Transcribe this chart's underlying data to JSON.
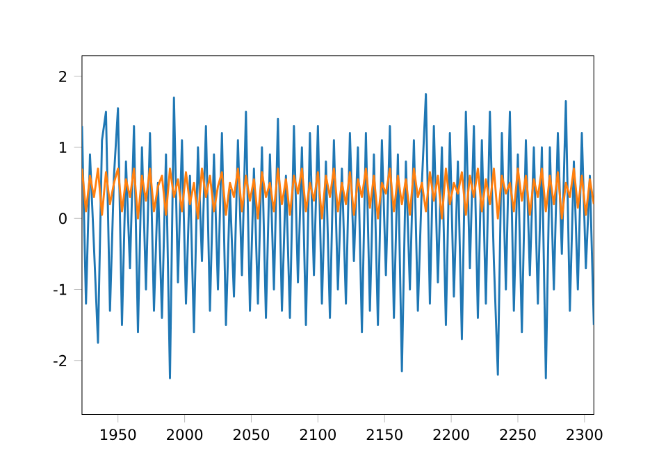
{
  "chart_data": {
    "type": "line",
    "x": [
      1923,
      1926,
      1929,
      1932,
      1935,
      1938,
      1941,
      1944,
      1947,
      1950,
      1953,
      1956,
      1959,
      1962,
      1965,
      1968,
      1971,
      1974,
      1977,
      1980,
      1983,
      1986,
      1989,
      1992,
      1995,
      1998,
      2001,
      2004,
      2007,
      2010,
      2013,
      2016,
      2019,
      2022,
      2025,
      2028,
      2031,
      2034,
      2037,
      2040,
      2043,
      2046,
      2049,
      2052,
      2055,
      2058,
      2061,
      2064,
      2067,
      2070,
      2073,
      2076,
      2079,
      2082,
      2085,
      2088,
      2091,
      2094,
      2097,
      2100,
      2103,
      2106,
      2109,
      2112,
      2115,
      2118,
      2121,
      2124,
      2127,
      2130,
      2133,
      2136,
      2139,
      2142,
      2145,
      2148,
      2151,
      2154,
      2157,
      2160,
      2163,
      2166,
      2169,
      2172,
      2175,
      2178,
      2181,
      2184,
      2187,
      2190,
      2193,
      2196,
      2199,
      2202,
      2205,
      2208,
      2211,
      2214,
      2217,
      2220,
      2223,
      2226,
      2229,
      2232,
      2235,
      2238,
      2241,
      2244,
      2247,
      2250,
      2253,
      2256,
      2259,
      2262,
      2265,
      2268,
      2271,
      2274,
      2277,
      2280,
      2283,
      2286,
      2289,
      2292,
      2295,
      2298,
      2301,
      2304,
      2307
    ],
    "series": [
      {
        "color": "#1f77b4",
        "values": [
          1.3,
          -1.2,
          0.9,
          -0.4,
          -1.75,
          1.1,
          1.5,
          -1.3,
          0.6,
          1.55,
          -1.5,
          0.8,
          -0.7,
          1.3,
          -1.6,
          1.0,
          -1.0,
          1.2,
          -1.3,
          0.5,
          -1.4,
          0.9,
          -2.25,
          1.7,
          -0.9,
          1.1,
          -1.2,
          0.6,
          -1.6,
          1.0,
          -0.6,
          1.3,
          -1.3,
          0.9,
          -1.0,
          1.2,
          -1.5,
          0.4,
          -1.1,
          1.1,
          -0.8,
          1.5,
          -1.3,
          0.7,
          -1.2,
          1.0,
          -1.4,
          0.9,
          -1.0,
          1.4,
          -1.3,
          0.6,
          -1.4,
          1.3,
          -0.9,
          1.0,
          -1.5,
          1.2,
          -0.8,
          1.3,
          -1.2,
          0.8,
          -1.4,
          1.1,
          -1.0,
          0.7,
          -1.2,
          1.2,
          -0.6,
          1.0,
          -1.6,
          1.2,
          -1.3,
          0.9,
          -1.5,
          1.1,
          -0.8,
          1.3,
          -1.4,
          0.9,
          -2.15,
          0.8,
          -1.0,
          1.1,
          -1.3,
          0.5,
          1.75,
          -1.2,
          1.3,
          -0.9,
          1.0,
          -1.5,
          1.2,
          -1.1,
          0.8,
          -1.7,
          1.5,
          -0.7,
          1.3,
          -1.4,
          1.1,
          -1.2,
          1.5,
          -0.6,
          -2.2,
          1.2,
          -1.0,
          1.5,
          -1.3,
          0.9,
          -1.6,
          1.1,
          -0.8,
          1.0,
          -1.2,
          1.0,
          -2.25,
          1.0,
          -1.0,
          1.2,
          -0.5,
          1.65,
          -1.3,
          0.8,
          -1.0,
          1.2,
          -0.7,
          0.6,
          -1.5
        ]
      },
      {
        "color": "#ff7f0e",
        "values": [
          0.7,
          0.1,
          0.6,
          0.3,
          0.7,
          0.05,
          0.65,
          0.2,
          0.5,
          0.7,
          0.1,
          0.55,
          0.3,
          0.7,
          0.0,
          0.6,
          0.25,
          0.7,
          0.1,
          0.45,
          0.6,
          0.05,
          0.7,
          0.3,
          0.55,
          0.1,
          0.65,
          0.2,
          0.5,
          0.0,
          0.7,
          0.3,
          0.6,
          0.1,
          0.45,
          0.65,
          0.05,
          0.5,
          0.3,
          0.7,
          0.1,
          0.6,
          0.25,
          0.55,
          0.0,
          0.65,
          0.3,
          0.5,
          0.1,
          0.7,
          0.2,
          0.55,
          0.05,
          0.6,
          0.35,
          0.7,
          0.1,
          0.5,
          0.25,
          0.65,
          0.0,
          0.6,
          0.3,
          0.7,
          0.1,
          0.5,
          0.2,
          0.65,
          0.05,
          0.55,
          0.3,
          0.7,
          0.15,
          0.6,
          0.0,
          0.5,
          0.35,
          0.7,
          0.1,
          0.6,
          0.2,
          0.55,
          0.05,
          0.7,
          0.3,
          0.5,
          0.1,
          0.65,
          0.25,
          0.6,
          0.0,
          0.7,
          0.2,
          0.5,
          0.35,
          0.65,
          0.05,
          0.6,
          0.3,
          0.7,
          0.1,
          0.55,
          0.2,
          0.7,
          0.0,
          0.6,
          0.35,
          0.5,
          0.1,
          0.7,
          0.25,
          0.6,
          0.05,
          0.55,
          0.3,
          0.7,
          0.1,
          0.6,
          0.2,
          0.65,
          0.0,
          0.5,
          0.3,
          0.7,
          0.15,
          0.6,
          0.05,
          0.55,
          0.2
        ]
      }
    ],
    "xlim": [
      1923,
      2307
    ],
    "ylim": [
      -2.76,
      2.29
    ],
    "xticks": [
      1950,
      2000,
      2050,
      2100,
      2150,
      2200,
      2250,
      2300
    ],
    "yticks": [
      -2,
      -1,
      0,
      1,
      2
    ],
    "grid": false,
    "marker": "none",
    "line_style": "solid"
  }
}
